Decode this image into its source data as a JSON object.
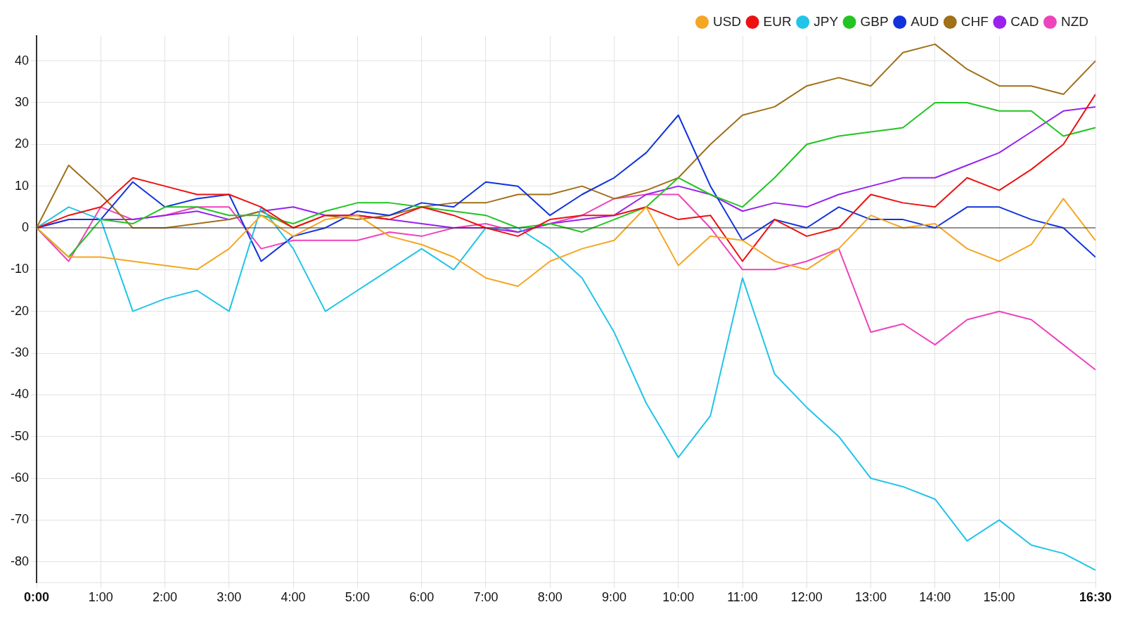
{
  "chart_data": {
    "type": "line",
    "x": [
      0,
      0.5,
      1,
      1.5,
      2,
      2.5,
      3,
      3.5,
      4,
      4.5,
      5,
      5.5,
      6,
      6.5,
      7,
      7.5,
      8,
      8.5,
      9,
      9.5,
      10,
      10.5,
      11,
      11.5,
      12,
      12.5,
      13,
      13.5,
      14,
      14.5,
      15,
      15.5,
      16,
      16.5
    ],
    "series": [
      {
        "name": "USD",
        "color": "#f5a623",
        "values": [
          0,
          -7,
          -7,
          -8,
          -9,
          -10,
          -5,
          3,
          -2,
          2,
          3,
          -2,
          -4,
          -7,
          -12,
          -14,
          -8,
          -5,
          -3,
          5,
          -9,
          -2,
          -3,
          -8,
          -10,
          -5,
          3,
          0,
          1,
          -5,
          -8,
          -4,
          7,
          -3
        ]
      },
      {
        "name": "EUR",
        "color": "#ee1111",
        "values": [
          0,
          3,
          5,
          12,
          10,
          8,
          8,
          5,
          0,
          3,
          3,
          2,
          5,
          3,
          0,
          -2,
          2,
          3,
          3,
          5,
          2,
          3,
          -8,
          2,
          -2,
          0,
          8,
          6,
          5,
          12,
          9,
          14,
          20,
          32
        ]
      },
      {
        "name": "JPY",
        "color": "#22c4e8",
        "values": [
          0,
          5,
          2,
          -20,
          -17,
          -15,
          -20,
          5,
          -5,
          -20,
          -15,
          -10,
          -5,
          -10,
          0,
          0,
          -5,
          -12,
          -25,
          -42,
          -55,
          -45,
          -12,
          -35,
          -43,
          -50,
          -60,
          -62,
          -65,
          -75,
          -70,
          -76,
          -78,
          -82
        ]
      },
      {
        "name": "GBP",
        "color": "#22c422",
        "values": [
          0,
          -7,
          2,
          1,
          5,
          5,
          3,
          3,
          1,
          4,
          6,
          6,
          5,
          4,
          3,
          0,
          1,
          -1,
          2,
          5,
          12,
          8,
          5,
          12,
          20,
          22,
          23,
          24,
          30,
          30,
          28,
          28,
          22,
          24
        ]
      },
      {
        "name": "AUD",
        "color": "#1133dd",
        "values": [
          0,
          2,
          2,
          11,
          5,
          7,
          8,
          -8,
          -2,
          0,
          4,
          3,
          6,
          5,
          11,
          10,
          3,
          8,
          12,
          18,
          27,
          10,
          -3,
          2,
          0,
          5,
          2,
          2,
          0,
          5,
          5,
          2,
          0,
          -7
        ]
      },
      {
        "name": "CHF",
        "color": "#a0701a",
        "values": [
          0,
          15,
          8,
          0,
          0,
          1,
          2,
          4,
          0,
          3,
          2,
          3,
          5,
          6,
          6,
          8,
          8,
          10,
          7,
          9,
          12,
          20,
          27,
          29,
          34,
          36,
          34,
          42,
          44,
          38,
          34,
          34,
          32,
          40
        ]
      },
      {
        "name": "CAD",
        "color": "#9922ee",
        "values": [
          0,
          2,
          2,
          2,
          3,
          4,
          2,
          4,
          5,
          3,
          3,
          2,
          1,
          0,
          0,
          -1,
          1,
          2,
          3,
          8,
          10,
          8,
          4,
          6,
          5,
          8,
          10,
          12,
          12,
          15,
          18,
          23,
          28,
          29
        ]
      },
      {
        "name": "NZD",
        "color": "#ee44bb",
        "values": [
          0,
          -8,
          5,
          2,
          3,
          5,
          5,
          -5,
          -3,
          -3,
          -3,
          -1,
          -2,
          0,
          1,
          -1,
          1,
          3,
          7,
          8,
          8,
          0,
          -10,
          -10,
          -8,
          -5,
          -25,
          -23,
          -28,
          -22,
          -20,
          -22,
          -28,
          -34
        ]
      }
    ],
    "xlim": [
      0,
      16.5
    ],
    "xticks": [
      {
        "value": 0,
        "label": "0:00"
      },
      {
        "value": 1,
        "label": "1:00"
      },
      {
        "value": 2,
        "label": "2:00"
      },
      {
        "value": 3,
        "label": "3:00"
      },
      {
        "value": 4,
        "label": "4:00"
      },
      {
        "value": 5,
        "label": "5:00"
      },
      {
        "value": 6,
        "label": "6:00"
      },
      {
        "value": 7,
        "label": "7:00"
      },
      {
        "value": 8,
        "label": "8:00"
      },
      {
        "value": 9,
        "label": "9:00"
      },
      {
        "value": 10,
        "label": "10:00"
      },
      {
        "value": 11,
        "label": "11:00"
      },
      {
        "value": 12,
        "label": "12:00"
      },
      {
        "value": 13,
        "label": "13:00"
      },
      {
        "value": 14,
        "label": "14:00"
      },
      {
        "value": 15,
        "label": "15:00"
      },
      {
        "value": 16.5,
        "label": "16:30"
      }
    ],
    "ylim": [
      -85,
      46
    ],
    "yticks": [
      -80,
      -70,
      -60,
      -50,
      -40,
      -30,
      -20,
      -10,
      0,
      10,
      20,
      30,
      40
    ],
    "ref_lines": [
      {
        "axis": "y",
        "value": 0,
        "color": "#333333"
      }
    ],
    "grid": true,
    "legend": "top right",
    "marker": "none",
    "line_style": "solid"
  }
}
